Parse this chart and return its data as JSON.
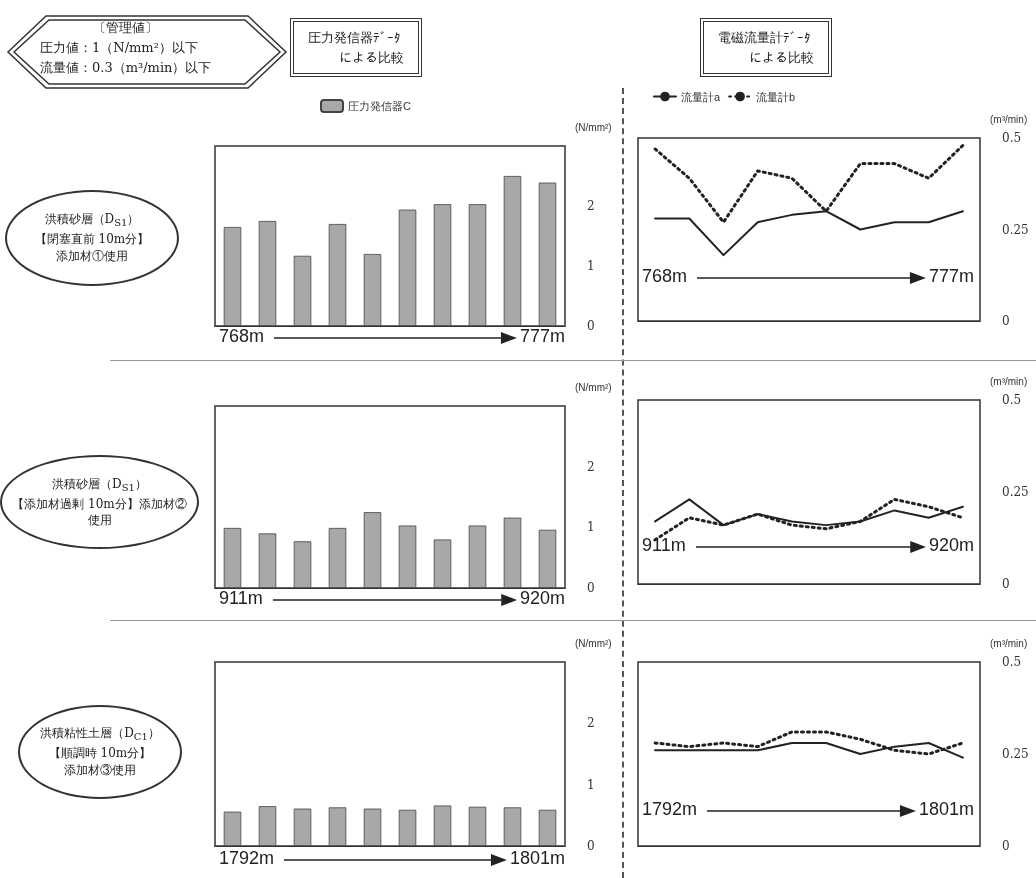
{
  "chart_data": [
    {
      "type": "bar",
      "title": "圧力発信器ﾃﾞｰﾀによる比較",
      "subtitle": "〔管理値〕",
      "ylabel": "(N/mm²)",
      "categories": [
        null,
        null,
        null,
        null,
        null,
        null,
        null,
        null,
        null,
        null
      ],
      "series": [
        {
          "name": "圧力発信器C",
          "color": "#a8a8a8",
          "values": [
            1.65,
            1.75,
            1.17,
            1.7,
            1.2,
            1.94,
            2.03,
            2.03,
            2.5,
            2.39
          ]
        }
      ],
      "ylim": [
        0,
        3
      ],
      "yticks": [
        0,
        1,
        2
      ],
      "legend": "top",
      "tick_labels": "y",
      "annotations": [
        "圧力値：1（N/mm²）以下",
        "流量値：0.3（m³/min）以下",
        "洪積砂層（D$_{S1}$）",
        "【閉塞直前 10m分】",
        "添加材①使用",
        "768m",
        "777m"
      ]
    },
    {
      "type": "line",
      "title": "電磁流量計ﾃﾞｰﾀによる比較",
      "ylabel": "(m³/min)",
      "categories": [
        null,
        null,
        null,
        null,
        null,
        null,
        null,
        null,
        null,
        null
      ],
      "series": [
        {
          "name": "流量計a",
          "color": "#222222",
          "line_style": "solid",
          "values": [
            0.28,
            0.28,
            0.18,
            0.27,
            0.29,
            0.3,
            0.25,
            0.27,
            0.27,
            0.3
          ]
        },
        {
          "name": "流量計b",
          "color": "#222222",
          "line_style": "dotted",
          "values": [
            0.47,
            0.39,
            0.27,
            0.41,
            0.39,
            0.3,
            0.43,
            0.43,
            0.39,
            0.48
          ]
        }
      ],
      "ylim": [
        0,
        0.5
      ],
      "yticks": [
        0,
        0.25,
        0.5
      ],
      "legend": "top",
      "tick_labels": "y",
      "annotations": [
        "768m",
        "777m"
      ]
    },
    {
      "type": "bar",
      "ylabel": "(N/mm²)",
      "categories": [
        null,
        null,
        null,
        null,
        null,
        null,
        null,
        null,
        null,
        null
      ],
      "series": [
        {
          "color": "#a8a8a8",
          "values": [
            0.99,
            0.9,
            0.77,
            0.99,
            1.25,
            1.03,
            0.8,
            1.03,
            1.16,
            0.96
          ]
        }
      ],
      "ylim": [
        0,
        3
      ],
      "yticks": [
        0,
        1,
        2
      ],
      "tick_labels": "y",
      "annotations": [
        "洪積砂層（D$_{S1}$）",
        "【添加材過剰 10m分】添加材②使用",
        "911m",
        "920m"
      ]
    },
    {
      "type": "line",
      "ylabel": "(m³/min)",
      "categories": [
        null,
        null,
        null,
        null,
        null,
        null,
        null,
        null,
        null,
        null
      ],
      "series": [
        {
          "color": "#222222",
          "line_style": "solid",
          "values": [
            0.17,
            0.23,
            0.16,
            0.19,
            0.17,
            0.16,
            0.17,
            0.2,
            0.18,
            0.21
          ]
        },
        {
          "color": "#222222",
          "line_style": "dotted",
          "values": [
            0.12,
            0.18,
            0.16,
            0.19,
            0.16,
            0.15,
            0.17,
            0.23,
            0.21,
            0.18
          ]
        }
      ],
      "ylim": [
        0,
        0.5
      ],
      "yticks": [
        0,
        0.25,
        0.5
      ],
      "tick_labels": "y",
      "annotations": [
        "911m",
        "920m"
      ]
    },
    {
      "type": "bar",
      "ylabel": "(N/mm²)",
      "categories": [
        null,
        null,
        null,
        null,
        null,
        null,
        null,
        null,
        null,
        null
      ],
      "series": [
        {
          "color": "#a8a8a8",
          "values": [
            0.56,
            0.65,
            0.61,
            0.63,
            0.61,
            0.59,
            0.66,
            0.64,
            0.63,
            0.59
          ]
        }
      ],
      "ylim": [
        0,
        3
      ],
      "yticks": [
        0,
        1,
        2
      ],
      "tick_labels": "y",
      "annotations": [
        "洪積粘性土層（D$_{C1}$）",
        "【順調時 10m分】",
        "添加材③使用",
        "1792m",
        "1801m"
      ]
    },
    {
      "type": "line",
      "ylabel": "(m³/min)",
      "categories": [
        null,
        null,
        null,
        null,
        null,
        null,
        null,
        null,
        null,
        null
      ],
      "series": [
        {
          "color": "#222222",
          "line_style": "solid",
          "values": [
            0.26,
            0.26,
            0.26,
            0.26,
            0.28,
            0.28,
            0.25,
            0.27,
            0.28,
            0.24
          ]
        },
        {
          "color": "#222222",
          "line_style": "dotted",
          "values": [
            0.28,
            0.27,
            0.28,
            0.27,
            0.31,
            0.31,
            0.29,
            0.26,
            0.25,
            0.28
          ]
        }
      ],
      "ylim": [
        0,
        0.5
      ],
      "yticks": [
        0,
        0.25,
        0.5
      ],
      "tick_labels": "y",
      "annotations": [
        "1792m",
        "1801m"
      ]
    }
  ]
}
